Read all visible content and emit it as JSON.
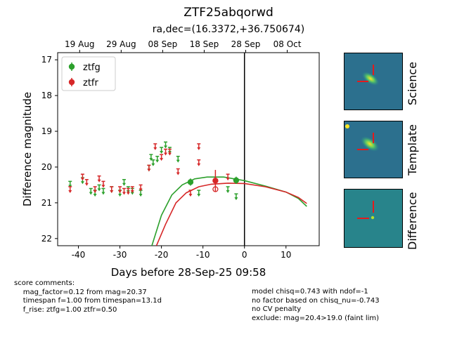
{
  "title": "ZTF25abqorwd",
  "subtitle": "ra,dec=(16.3372,+36.750674)",
  "chart_data": {
    "type": "scatter",
    "xlabel": "Days before 28-Sep-25 09:58",
    "ylabel": "Difference magnitude",
    "xlim": [
      -45,
      18
    ],
    "ylim": [
      22.2,
      16.8
    ],
    "x_ticks": [
      -40,
      -30,
      -20,
      -10,
      0,
      10
    ],
    "y_ticks": [
      17,
      18,
      19,
      20,
      21,
      22
    ],
    "top_ticks": [
      {
        "x": -39.7,
        "label": "19 Aug"
      },
      {
        "x": -29.7,
        "label": "29 Aug"
      },
      {
        "x": -19.7,
        "label": "08 Sep"
      },
      {
        "x": -9.7,
        "label": "18 Sep"
      },
      {
        "x": 0.3,
        "label": "28 Sep"
      },
      {
        "x": 10.3,
        "label": "08 Oct"
      }
    ],
    "reference_line_x": 0,
    "legend": {
      "position": "top-left",
      "entries": [
        "ztfg",
        "ztfr"
      ]
    },
    "colors": {
      "ztfg": "#2ca02c",
      "ztfr": "#d62728"
    },
    "series": [
      {
        "name": "ztfg",
        "detections": [
          {
            "x": -13,
            "y": 20.42,
            "err": 0.1
          },
          {
            "x": -2,
            "y": 20.37,
            "err": 0.1
          }
        ],
        "upper_limits": [
          {
            "x": -42,
            "y": 20.4
          },
          {
            "x": -39,
            "y": 20.3
          },
          {
            "x": -37,
            "y": 20.6
          },
          {
            "x": -36,
            "y": 20.65
          },
          {
            "x": -35,
            "y": 20.5
          },
          {
            "x": -34,
            "y": 20.6
          },
          {
            "x": -32,
            "y": 20.55
          },
          {
            "x": -30,
            "y": 20.65
          },
          {
            "x": -29,
            "y": 20.35
          },
          {
            "x": -28,
            "y": 20.55
          },
          {
            "x": -27,
            "y": 20.6
          },
          {
            "x": -25,
            "y": 20.65
          },
          {
            "x": -23,
            "y": 19.95
          },
          {
            "x": -22.5,
            "y": 19.65
          },
          {
            "x": -22,
            "y": 19.8
          },
          {
            "x": -21,
            "y": 19.7
          },
          {
            "x": -20,
            "y": 19.45
          },
          {
            "x": -19,
            "y": 19.3
          },
          {
            "x": -18,
            "y": 19.45
          },
          {
            "x": -16,
            "y": 19.7
          },
          {
            "x": -11,
            "y": 20.65
          },
          {
            "x": -4,
            "y": 20.55
          },
          {
            "x": -2,
            "y": 20.75
          }
        ]
      },
      {
        "name": "ztfr",
        "detections": [
          {
            "x": -7,
            "y": 20.38,
            "err": 0.3
          }
        ],
        "hollow_points": [
          {
            "x": -7,
            "y": 20.62
          }
        ],
        "upper_limits": [
          {
            "x": -42,
            "y": 20.55
          },
          {
            "x": -39,
            "y": 20.2
          },
          {
            "x": -38,
            "y": 20.35
          },
          {
            "x": -36,
            "y": 20.55
          },
          {
            "x": -35,
            "y": 20.25
          },
          {
            "x": -34,
            "y": 20.4
          },
          {
            "x": -32,
            "y": 20.55
          },
          {
            "x": -30,
            "y": 20.55
          },
          {
            "x": -29,
            "y": 20.6
          },
          {
            "x": -28,
            "y": 20.6
          },
          {
            "x": -27,
            "y": 20.55
          },
          {
            "x": -25,
            "y": 20.5
          },
          {
            "x": -23,
            "y": 19.95
          },
          {
            "x": -21.5,
            "y": 19.35
          },
          {
            "x": -20,
            "y": 19.65
          },
          {
            "x": -19,
            "y": 19.5
          },
          {
            "x": -18,
            "y": 19.5
          },
          {
            "x": -16,
            "y": 20.05
          },
          {
            "x": -13,
            "y": 20.65
          },
          {
            "x": -11,
            "y": 19.35
          },
          {
            "x": -11,
            "y": 19.8
          },
          {
            "x": -4,
            "y": 20.2
          }
        ]
      }
    ],
    "fits": [
      {
        "name": "ztfg",
        "points": [
          [
            -22.3,
            22.2
          ],
          [
            -20,
            21.35
          ],
          [
            -17.5,
            20.78
          ],
          [
            -15,
            20.5
          ],
          [
            -12,
            20.33
          ],
          [
            -9,
            20.28
          ],
          [
            -5,
            20.28
          ],
          [
            0,
            20.38
          ],
          [
            5,
            20.53
          ],
          [
            10,
            20.7
          ],
          [
            13,
            20.88
          ],
          [
            15,
            21.1
          ]
        ]
      },
      {
        "name": "ztfr",
        "points": [
          [
            -21.2,
            22.2
          ],
          [
            -19,
            21.6
          ],
          [
            -16.5,
            21.0
          ],
          [
            -14,
            20.72
          ],
          [
            -11,
            20.55
          ],
          [
            -8,
            20.48
          ],
          [
            -4,
            20.45
          ],
          [
            0,
            20.46
          ],
          [
            5,
            20.55
          ],
          [
            10,
            20.7
          ],
          [
            13,
            20.85
          ],
          [
            15,
            21.02
          ]
        ]
      }
    ]
  },
  "stamps": [
    {
      "label": "Science"
    },
    {
      "label": "Template"
    },
    {
      "label": "Difference"
    }
  ],
  "comments_left": [
    "score comments:",
    "    mag_factor=0.12 from mag=20.37",
    "    timespan f=1.00 from timespan=13.1d",
    "    f_rise: ztfg=1.00 ztfr=0.50"
  ],
  "comments_right": [
    "model chisq=0.743 with ndof=-1",
    "no factor based on chisq_nu=-0.743",
    "no CV penalty",
    "exclude: mag=20.4>19.0 (faint lim)"
  ]
}
